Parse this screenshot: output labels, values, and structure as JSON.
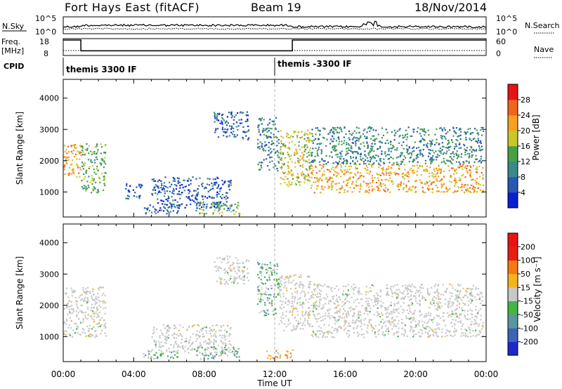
{
  "header": {
    "station": "Fort Hays East (fitACF)",
    "beam": "Beam 19",
    "date": "18/Nov/2014"
  },
  "summary_panels": {
    "nsky": {
      "label": "N.Sky",
      "ticks": [
        "10^5",
        "10^0"
      ]
    },
    "nsearch": {
      "label": "N.Search",
      "ticks": [
        "10^5",
        "10^0"
      ]
    },
    "freq": {
      "label_line1": "Freq.",
      "label_line2": "[MHz]",
      "ticks": [
        "18",
        "8"
      ]
    },
    "nave": {
      "label": "Nave",
      "ticks": [
        "60",
        "0"
      ]
    },
    "cpid": {
      "label": "CPID",
      "modes": [
        "themis 3300 IF",
        "themis -3300 IF"
      ],
      "mode_change_time": "12:00"
    },
    "freq_values_mhz": [
      {
        "from": "00:00",
        "to": "01:00",
        "value": 18
      },
      {
        "from": "01:00",
        "to": "13:00",
        "value": 11
      },
      {
        "from": "13:00",
        "to": "24:00",
        "value": 18
      }
    ]
  },
  "chart_data": [
    {
      "type": "heatmap",
      "panel": "power",
      "ylabel": "Slant Range [km]",
      "xlabel": "Time UT",
      "x_ticks": [
        "00:00",
        "04:00",
        "08:00",
        "12:00",
        "16:00",
        "20:00",
        "00:00"
      ],
      "y_ticks": [
        "1000",
        "2000",
        "3000",
        "4000"
      ],
      "ylim": [
        200,
        4600
      ],
      "xlim_hours": [
        0,
        24
      ],
      "colorbar": {
        "label": "Power [dB]",
        "ticks": [
          "4",
          "8",
          "12",
          "16",
          "20",
          "24",
          "28"
        ],
        "colors": [
          "#0a1ed2",
          "#2a56b4",
          "#3a8a8a",
          "#46a046",
          "#c8c828",
          "#f5a01e",
          "#f0641e",
          "#e61414"
        ]
      },
      "regions": [
        {
          "t": [
            0.0,
            1.0
          ],
          "r": [
            1500,
            2600
          ],
          "level": 5
        },
        {
          "t": [
            1.0,
            2.4
          ],
          "r": [
            1000,
            2600
          ],
          "level": 3
        },
        {
          "t": [
            3.5,
            4.5
          ],
          "r": [
            800,
            1300
          ],
          "level": 1
        },
        {
          "t": [
            4.5,
            6.5
          ],
          "r": [
            300,
            600
          ],
          "level": 1
        },
        {
          "t": [
            5.0,
            9.5
          ],
          "r": [
            500,
            1500
          ],
          "level": 1
        },
        {
          "t": [
            7.5,
            10.0
          ],
          "r": [
            300,
            700
          ],
          "level": 3
        },
        {
          "t": [
            8.5,
            10.5
          ],
          "r": [
            2700,
            3600
          ],
          "level": 1
        },
        {
          "t": [
            11.0,
            12.2
          ],
          "r": [
            1700,
            3400
          ],
          "level": 2
        },
        {
          "t": [
            12.2,
            14.0
          ],
          "r": [
            1200,
            3000
          ],
          "level": 4
        },
        {
          "t": [
            14.0,
            23.8
          ],
          "r": [
            1000,
            1900
          ],
          "level": 5
        },
        {
          "t": [
            14.0,
            23.8
          ],
          "r": [
            1900,
            3100
          ],
          "level": 2
        }
      ]
    },
    {
      "type": "heatmap",
      "panel": "velocity",
      "ylabel": "Slant Range [km]",
      "xlabel": "Time UT",
      "x_ticks": [
        "00:00",
        "04:00",
        "08:00",
        "12:00",
        "16:00",
        "20:00",
        "00:00"
      ],
      "y_ticks": [
        "1000",
        "2000",
        "3000",
        "4000"
      ],
      "ylim": [
        200,
        4600
      ],
      "xlim_hours": [
        0,
        24
      ],
      "colorbar": {
        "label": "Velocity [m s⁻¹]",
        "ticks": [
          "200",
          "100",
          "50",
          "15",
          "-15",
          "-50",
          "-100",
          "-200"
        ],
        "colors": [
          "#1e28c8",
          "#3c64b4",
          "#5a96a0",
          "#46b446",
          "#c8c8c8",
          "#f5b41e",
          "#f57814",
          "#e61e14",
          "#e61414"
        ]
      },
      "regions": [
        {
          "t": [
            0.0,
            2.4
          ],
          "r": [
            1000,
            2600
          ],
          "level": 4
        },
        {
          "t": [
            4.5,
            6.5
          ],
          "r": [
            300,
            600
          ],
          "level": 3
        },
        {
          "t": [
            5.0,
            9.5
          ],
          "r": [
            500,
            1400
          ],
          "level": 4
        },
        {
          "t": [
            7.5,
            10.0
          ],
          "r": [
            300,
            700
          ],
          "level": 3
        },
        {
          "t": [
            8.5,
            10.5
          ],
          "r": [
            2700,
            3600
          ],
          "level": 4
        },
        {
          "t": [
            11.0,
            12.2
          ],
          "r": [
            1700,
            3400
          ],
          "level": 3
        },
        {
          "t": [
            12.2,
            14.0
          ],
          "r": [
            1200,
            3000
          ],
          "level": 4
        },
        {
          "t": [
            14.0,
            23.8
          ],
          "r": [
            1000,
            2700
          ],
          "level": 4
        },
        {
          "t": [
            11.5,
            13.0
          ],
          "r": [
            300,
            600
          ],
          "level": 5
        }
      ]
    }
  ]
}
